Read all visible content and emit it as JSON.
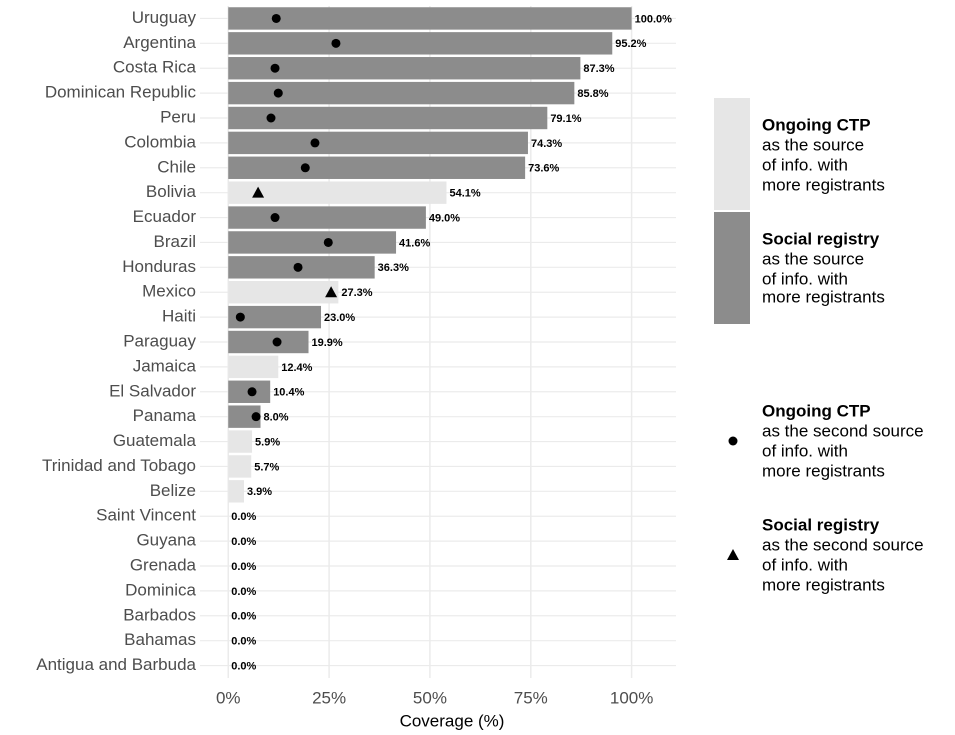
{
  "chart_data": {
    "type": "bar",
    "orientation": "horizontal",
    "x_label": "Coverage (%)",
    "categories": [
      "Uruguay",
      "Argentina",
      "Costa Rica",
      "Dominican Republic",
      "Peru",
      "Colombia",
      "Chile",
      "Bolivia",
      "Ecuador",
      "Brazil",
      "Honduras",
      "Mexico",
      "Haiti",
      "Paraguay",
      "Jamaica",
      "El Salvador",
      "Panama",
      "Guatemala",
      "Trinidad and Tobago",
      "Belize",
      "Saint Vincent",
      "Guyana",
      "Grenada",
      "Dominica",
      "Barbados",
      "Bahamas",
      "Antigua and Barbuda"
    ],
    "xlim": [
      -7,
      111
    ],
    "xticks": [
      {
        "value": 0,
        "label": "0%"
      },
      {
        "value": 25,
        "label": "25%"
      },
      {
        "value": 50,
        "label": "50%"
      },
      {
        "value": 75,
        "label": "75%"
      },
      {
        "value": 100,
        "label": "100%"
      }
    ],
    "grid": true,
    "series": [
      {
        "name": "Ongoing CTP",
        "legend_lines": [
          "as the source",
          "of info. with",
          "more registrants"
        ],
        "mark": "bar",
        "color": "#e6e6e6",
        "values": [
          null,
          null,
          null,
          null,
          null,
          null,
          null,
          54.1,
          null,
          null,
          null,
          27.3,
          null,
          null,
          12.4,
          null,
          null,
          5.9,
          5.7,
          3.9,
          0,
          0,
          0,
          0,
          0,
          0,
          0
        ],
        "value_labels": [
          null,
          null,
          null,
          null,
          null,
          null,
          null,
          "54.1%",
          null,
          null,
          null,
          "27.3%",
          null,
          null,
          "12.4%",
          null,
          null,
          "5.9%",
          "5.7%",
          "3.9%",
          "0.0%",
          "0.0%",
          "0.0%",
          "0.0%",
          "0.0%",
          "0.0%",
          "0.0%"
        ]
      },
      {
        "name": "Social registry",
        "legend_lines": [
          "as the source",
          "of info. with",
          "more registrants"
        ],
        "mark": "bar",
        "color": "#8c8c8c",
        "values": [
          100,
          95.2,
          87.3,
          85.8,
          79.1,
          74.3,
          73.6,
          null,
          49.0,
          41.6,
          36.3,
          null,
          23.0,
          19.9,
          null,
          10.4,
          8.0,
          null,
          null,
          null,
          null,
          null,
          null,
          null,
          null,
          null,
          null
        ],
        "value_labels": [
          "100.0%",
          "95.2%",
          "87.3%",
          "85.8%",
          "79.1%",
          "74.3%",
          "73.6%",
          null,
          "49.0%",
          "41.6%",
          "36.3%",
          null,
          "23.0%",
          "19.9%",
          null,
          "10.4%",
          "8.0%",
          null,
          null,
          null,
          null,
          null,
          null,
          null,
          null,
          null,
          null
        ]
      },
      {
        "name": "Ongoing CTP",
        "legend_lines": [
          "as the second source",
          "of info. with",
          "more registrants"
        ],
        "mark": "dot",
        "color": "#000000",
        "values": [
          11.9,
          26.7,
          11.6,
          12.4,
          10.6,
          21.5,
          19.1,
          null,
          11.6,
          24.8,
          17.3,
          null,
          3.0,
          12.1,
          null,
          5.9,
          6.9,
          null,
          null,
          null,
          null,
          null,
          null,
          null,
          null,
          null,
          null
        ]
      },
      {
        "name": "Social registry",
        "legend_lines": [
          "as the second source",
          "of info. with",
          "more registrants"
        ],
        "mark": "triangle",
        "color": "#000000",
        "values": [
          null,
          null,
          null,
          null,
          null,
          null,
          null,
          7.4,
          null,
          null,
          null,
          25.5,
          null,
          null,
          null,
          null,
          null,
          null,
          null,
          null,
          null,
          null,
          null,
          null,
          null,
          null,
          null
        ]
      }
    ]
  }
}
